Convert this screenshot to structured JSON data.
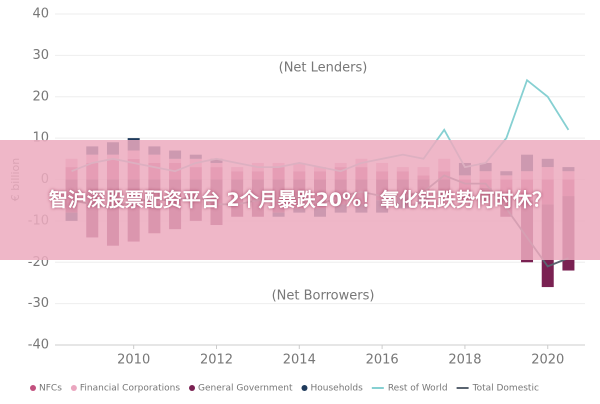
{
  "chart_data": {
    "type": "bar",
    "y_label": "€ billion",
    "annotations": [
      "(Net Lenders)",
      "(Net Borrowers)"
    ],
    "x": [
      2008.5,
      2009,
      2009.5,
      2010,
      2010.5,
      2011,
      2011.5,
      2012,
      2012.5,
      2013,
      2013.5,
      2014,
      2014.5,
      2015,
      2015.5,
      2016,
      2016.5,
      2017,
      2017.5,
      2018,
      2018.5,
      2019,
      2019.5,
      2020,
      2020.5
    ],
    "xlim": [
      2008.1,
      2020.9
    ],
    "xticks": [
      2010,
      2012,
      2014,
      2016,
      2018,
      2020
    ],
    "ylim": [
      -40,
      40
    ],
    "yticks": [
      -40,
      -30,
      -20,
      -10,
      0,
      10,
      20,
      30,
      40
    ],
    "series": [
      {
        "name": "NFCs",
        "kind": "bar",
        "color": "#c2507e",
        "values": [
          3,
          4,
          5,
          5,
          4,
          4,
          3,
          3,
          2,
          2,
          3,
          2,
          2,
          3,
          3,
          2,
          2,
          1,
          2,
          -3,
          -2,
          -4,
          -5,
          -6,
          -4
        ]
      },
      {
        "name": "Financial Corporations",
        "kind": "bar",
        "color": "#eaa6bf",
        "values": [
          2,
          2,
          1,
          2,
          2,
          1,
          2,
          1,
          1,
          2,
          1,
          2,
          1,
          1,
          2,
          2,
          1,
          2,
          3,
          1,
          2,
          1,
          2,
          3,
          2
        ]
      },
      {
        "name": "General Government",
        "kind": "bar",
        "color": "#7a2152",
        "values": [
          -8,
          -14,
          -16,
          -15,
          -13,
          -12,
          -10,
          -11,
          -9,
          -9,
          -8,
          -7,
          -7,
          -6,
          -6,
          -5,
          -4,
          -4,
          -3,
          -2,
          -3,
          -5,
          -15,
          -20,
          -18
        ]
      },
      {
        "name": "Households",
        "kind": "bar",
        "color": "#1f3b5c",
        "values": [
          -2,
          2,
          3,
          3,
          2,
          2,
          1,
          1,
          0,
          0,
          -1,
          -1,
          -2,
          -2,
          -2,
          -3,
          -3,
          -2,
          -1,
          3,
          2,
          1,
          4,
          2,
          1
        ]
      },
      {
        "name": "Rest of World",
        "kind": "line",
        "color": "#86d0d2",
        "values": [
          2,
          4,
          5,
          4,
          3,
          2,
          4,
          5,
          4,
          3,
          3,
          4,
          3,
          2,
          4,
          5,
          6,
          5,
          12,
          3,
          4,
          10,
          24,
          20,
          12
        ]
      },
      {
        "name": "Total Domestic",
        "kind": "line",
        "color": "#5a6470",
        "values": [
          -5,
          -6,
          -7,
          -5,
          -5,
          -5,
          -4,
          -6,
          -6,
          -5,
          -5,
          -4,
          -6,
          -4,
          -3,
          -4,
          -4,
          -3,
          1,
          -1,
          -1,
          -7,
          -14,
          -21,
          -19
        ]
      }
    ]
  },
  "banner": {
    "headline": "智沪深股票配资平台 2个月暴跌20%！氧化铝跌势何时休？"
  }
}
